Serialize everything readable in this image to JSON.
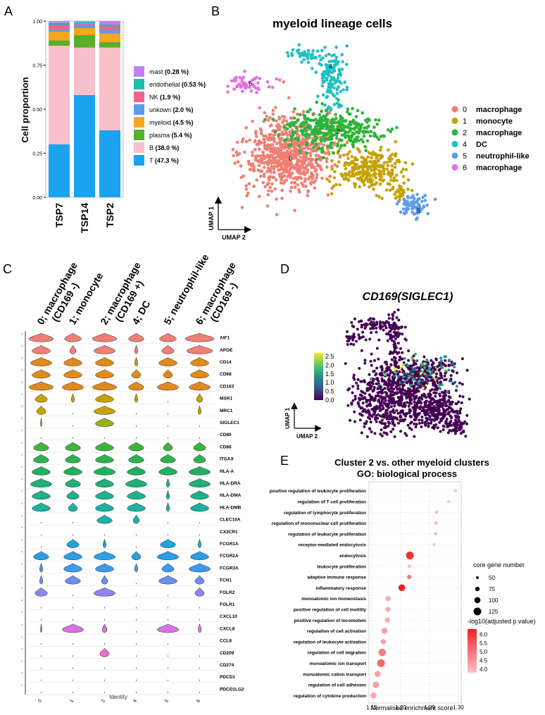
{
  "panels": {
    "A": "A",
    "B": "B",
    "C": "C",
    "D": "D",
    "E": "E"
  },
  "chart_data": [
    {
      "id": "A",
      "type": "bar",
      "stacked": true,
      "ylabel": "Cell proportion",
      "xlabel": "",
      "ylim": [
        0,
        1
      ],
      "yticks": [
        "0.00",
        "0.25",
        "0.50",
        "0.75",
        "1.00"
      ],
      "categories": [
        "TSP7",
        "TSP14",
        "TSP2"
      ],
      "series": [
        {
          "name": "T",
          "pct": "(47.3 %)",
          "color": "#1BA3EF",
          "values": [
            0.3,
            0.58,
            0.38
          ]
        },
        {
          "name": "B",
          "pct": "(38.0 %)",
          "color": "#F8C0CB",
          "values": [
            0.56,
            0.27,
            0.47
          ]
        },
        {
          "name": "plasma",
          "pct": "(5.4 %)",
          "color": "#5AAE2A",
          "values": [
            0.03,
            0.07,
            0.03
          ]
        },
        {
          "name": "myeloid",
          "pct": "(4.5 %)",
          "color": "#F5A623",
          "values": [
            0.05,
            0.04,
            0.05
          ]
        },
        {
          "name": "unkown",
          "pct": "(2.0 %)",
          "color": "#5C9CE6",
          "values": [
            0.01,
            0.02,
            0.02
          ]
        },
        {
          "name": "NK",
          "pct": "(1.9 %)",
          "color": "#F0628E",
          "values": [
            0.03,
            0.005,
            0.02
          ]
        },
        {
          "name": "endothelial",
          "pct": "(0.53 %)",
          "color": "#1DBFAA",
          "values": [
            0.01,
            0.01,
            0.01
          ]
        },
        {
          "name": "mast",
          "pct": "(0.28 %)",
          "color": "#C080F0",
          "values": [
            0.005,
            0.005,
            0.01
          ]
        }
      ],
      "legend_position": "right"
    },
    {
      "id": "B",
      "type": "scatter",
      "title": "myeloid lineage cells",
      "xlabel": "UMAP 2",
      "ylabel": "UMAP 1",
      "clusters": [
        {
          "id": "0",
          "label": "macrophage",
          "color": "#F07F74"
        },
        {
          "id": "1",
          "label": "monocyte",
          "color": "#C5A200"
        },
        {
          "id": "2",
          "label": "macrophage",
          "color": "#2FB33A"
        },
        {
          "id": "4",
          "label": "DC",
          "color": "#1FC0C4"
        },
        {
          "id": "5",
          "label": "neutrophil-like",
          "color": "#5F9BEF"
        },
        {
          "id": "6",
          "label": "macrophage",
          "color": "#E46FE0"
        }
      ],
      "legend_position": "right"
    },
    {
      "id": "C",
      "type": "violin",
      "xlabel": "Identity",
      "groups": [
        {
          "top": "0; macrophage",
          "sub": "(CD169 -)",
          "tick": "0"
        },
        {
          "top": "1; monocyte",
          "sub": "",
          "tick": "1"
        },
        {
          "top": "2; macrophage",
          "sub": "(CD169 +)",
          "tick": "2"
        },
        {
          "top": "4; DC",
          "sub": "",
          "tick": "4"
        },
        {
          "top": "5; neutrophil-like",
          "sub": "",
          "tick": "5"
        },
        {
          "top": "6; macrophage",
          "sub": "(CD169 -)",
          "tick": "6"
        }
      ],
      "genes": [
        {
          "name": "AIF1",
          "color": "#F07F74",
          "w": [
            0.8,
            0.55,
            0.8,
            0.5,
            0.55,
            0.95
          ]
        },
        {
          "name": "APOE",
          "color": "#F07F74",
          "w": [
            0.6,
            0.2,
            0.7,
            0.1,
            0.4,
            0.85
          ]
        },
        {
          "name": "CD14",
          "color": "#E08A1E",
          "w": [
            0.7,
            0.6,
            0.6,
            0.1,
            0.6,
            0.6
          ]
        },
        {
          "name": "CD68",
          "color": "#E08A1E",
          "w": [
            0.6,
            0.6,
            0.6,
            0.3,
            0.3,
            0.6
          ]
        },
        {
          "name": "CD163",
          "color": "#E08A1E",
          "w": [
            0.8,
            0.7,
            0.8,
            0.5,
            0.7,
            0.7
          ]
        },
        {
          "name": "MSR1",
          "color": "#C5A200",
          "w": [
            0.4,
            0.1,
            0.6,
            0.1,
            0.0,
            0.2
          ]
        },
        {
          "name": "MRC1",
          "color": "#C5A200",
          "w": [
            0.3,
            0.0,
            0.7,
            0.0,
            0.0,
            0.1
          ]
        },
        {
          "name": "SIGLEC1",
          "color": "#9DAE1C",
          "w": [
            0.05,
            0.0,
            0.6,
            0.0,
            0.0,
            0.0
          ]
        },
        {
          "name": "CD80",
          "color": "#7DB82C",
          "w": [
            0.0,
            0.0,
            0.0,
            0.0,
            0.0,
            0.0
          ]
        },
        {
          "name": "CD86",
          "color": "#3FB43C",
          "w": [
            0.5,
            0.5,
            0.6,
            0.5,
            0.3,
            0.4
          ]
        },
        {
          "name": "ITGAX",
          "color": "#2DB34E",
          "w": [
            0.5,
            0.5,
            0.6,
            0.5,
            0.5,
            0.4
          ]
        },
        {
          "name": "HLA-A",
          "color": "#20B060",
          "w": [
            0.6,
            0.6,
            0.7,
            0.6,
            0.6,
            0.7
          ]
        },
        {
          "name": "HLA-DRA",
          "color": "#1FB07A",
          "w": [
            0.7,
            0.5,
            0.6,
            0.7,
            0.1,
            0.7
          ]
        },
        {
          "name": "HLA-DMA",
          "color": "#1FB08E",
          "w": [
            0.6,
            0.4,
            0.6,
            0.6,
            0.1,
            0.6
          ]
        },
        {
          "name": "HLA-DMB",
          "color": "#1FB0A0",
          "w": [
            0.6,
            0.3,
            0.6,
            0.6,
            0.1,
            0.6
          ]
        },
        {
          "name": "CLEC10A",
          "color": "#1FB0B0",
          "w": [
            0.0,
            0.0,
            0.5,
            0.2,
            0.0,
            0.0
          ]
        },
        {
          "name": "CX3CR1",
          "color": "#1FAFC2",
          "w": [
            0.0,
            0.0,
            0.0,
            0.0,
            0.0,
            0.0
          ]
        },
        {
          "name": "FCGR1A",
          "color": "#1FA5D8",
          "w": [
            0.0,
            0.4,
            0.1,
            0.0,
            0.5,
            0.1
          ]
        },
        {
          "name": "FCGR2A",
          "color": "#2B9FE8",
          "w": [
            0.5,
            0.6,
            0.7,
            0.3,
            0.7,
            0.6
          ]
        },
        {
          "name": "FCGR3A",
          "color": "#3C9AEE",
          "w": [
            0.1,
            0.6,
            0.6,
            0.1,
            0.4,
            0.7
          ]
        },
        {
          "name": "FCN1",
          "color": "#6D8EF0",
          "w": [
            0.1,
            0.5,
            0.2,
            0.0,
            0.6,
            0.3
          ]
        },
        {
          "name": "FOLR2",
          "color": "#8C86EE",
          "w": [
            0.4,
            0.0,
            0.7,
            0.0,
            0.0,
            0.3
          ]
        },
        {
          "name": "FOLR1",
          "color": "#A880EC",
          "w": [
            0.0,
            0.0,
            0.0,
            0.0,
            0.0,
            0.0
          ]
        },
        {
          "name": "CXCL10",
          "color": "#C27AEA",
          "w": [
            0.0,
            0.0,
            0.0,
            0.0,
            0.0,
            0.0
          ]
        },
        {
          "name": "CXCL8",
          "color": "#DA72E6",
          "w": [
            0.05,
            0.7,
            0.15,
            0.0,
            0.7,
            0.1
          ]
        },
        {
          "name": "CCL8",
          "color": "#E46FE0",
          "w": [
            0.0,
            0.0,
            0.0,
            0.0,
            0.0,
            0.0
          ]
        },
        {
          "name": "CD209",
          "color": "#EE6CC8",
          "w": [
            0.0,
            0.0,
            0.3,
            0.0,
            0.0,
            0.0
          ]
        },
        {
          "name": "CD274",
          "color": "#F26CB0",
          "w": [
            0.0,
            0.0,
            0.0,
            0.0,
            0.0,
            0.0
          ]
        },
        {
          "name": "PDCD1",
          "color": "#F46C98",
          "w": [
            0.0,
            0.0,
            0.0,
            0.0,
            0.0,
            0.0
          ]
        },
        {
          "name": "PDCD1LG2",
          "color": "#F47080",
          "w": [
            0.0,
            0.0,
            0.0,
            0.0,
            0.0,
            0.0
          ]
        }
      ]
    },
    {
      "id": "D",
      "type": "scatter",
      "title": "CD169(SIGLEC1)",
      "xlabel": "UMAP 2",
      "ylabel": "UMAP 1",
      "colorbar": {
        "ticks": [
          "2.5",
          "2.0",
          "1.5",
          "1.0",
          "0.5",
          "0.0"
        ],
        "min": 0,
        "max": 2.7
      }
    },
    {
      "id": "E",
      "type": "scatter",
      "title": "Cluster 2 vs. other myeloid clusters",
      "subtitle": "GO: biological process",
      "xlabel": "Normalised enrichment score",
      "xlim": [
        1.15,
        1.3
      ],
      "xticks": [
        "1.15",
        "1.20",
        "1.25",
        "1.30"
      ],
      "size_legend": {
        "title": "core gene number",
        "values": [
          "50",
          "75",
          "100",
          "125"
        ]
      },
      "color_legend": {
        "title": "-log10(adjusted p value)",
        "ticks": [
          "6.0",
          "5.5",
          "5.0",
          "4.5",
          "4.0"
        ]
      },
      "terms": [
        {
          "label": "positive regulation of leukocyte proliferation",
          "x": 1.295,
          "size": 50,
          "p": 4.0
        },
        {
          "label": "regulation of T cell proliferation",
          "x": 1.283,
          "size": 50,
          "p": 4.1
        },
        {
          "label": "regulation of lymphocyte proliferation",
          "x": 1.262,
          "size": 55,
          "p": 4.2
        },
        {
          "label": "regulation of mononuclear cell proliferation",
          "x": 1.261,
          "size": 55,
          "p": 4.2
        },
        {
          "label": "regulation of leukocyte proliferation",
          "x": 1.26,
          "size": 55,
          "p": 4.3
        },
        {
          "label": "receptor-mediated endocytosis",
          "x": 1.258,
          "size": 55,
          "p": 4.0
        },
        {
          "label": "endocytosis",
          "x": 1.216,
          "size": 125,
          "p": 6.3
        },
        {
          "label": "leukocyte proliferation",
          "x": 1.215,
          "size": 60,
          "p": 4.2
        },
        {
          "label": "adaptive immune response",
          "x": 1.215,
          "size": 75,
          "p": 5.2
        },
        {
          "label": "inflammatory response",
          "x": 1.202,
          "size": 110,
          "p": 6.5
        },
        {
          "label": "monoatomic ion homeostasis",
          "x": 1.178,
          "size": 90,
          "p": 4.3
        },
        {
          "label": "positive regulation of cell motility",
          "x": 1.178,
          "size": 85,
          "p": 4.4
        },
        {
          "label": "positive regulation of locomotion",
          "x": 1.177,
          "size": 85,
          "p": 4.4
        },
        {
          "label": "regulation of cell activation",
          "x": 1.172,
          "size": 95,
          "p": 4.6
        },
        {
          "label": "regulation of leukocyte activation",
          "x": 1.17,
          "size": 85,
          "p": 4.6
        },
        {
          "label": "regulation of cell migration",
          "x": 1.168,
          "size": 120,
          "p": 5.1
        },
        {
          "label": "monoatomic ion transport",
          "x": 1.166,
          "size": 125,
          "p": 5.4
        },
        {
          "label": "monoatomic cation transport",
          "x": 1.16,
          "size": 100,
          "p": 4.5
        },
        {
          "label": "regulation of cell adhesion",
          "x": 1.157,
          "size": 105,
          "p": 4.5
        },
        {
          "label": "regulation of cytokine production",
          "x": 1.153,
          "size": 100,
          "p": 4.4
        }
      ]
    }
  ]
}
